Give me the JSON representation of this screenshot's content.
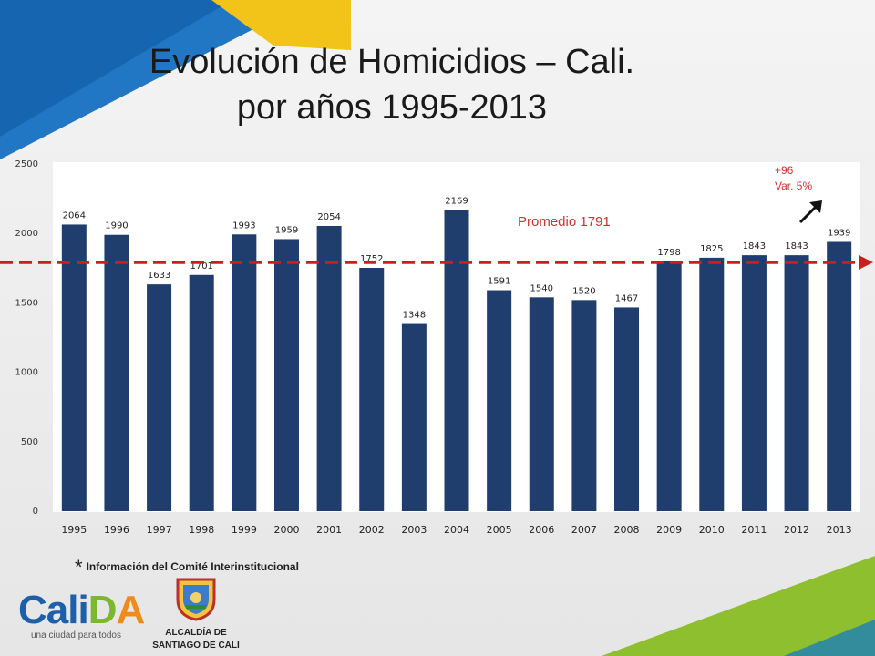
{
  "title_line1": "Evolución de Homicidios – Cali.",
  "title_line2": "por años 1995-2013",
  "footnote_star": "*",
  "footnote": "Información del Comité Interinstitucional",
  "logo": {
    "calida_parts": [
      "Cali",
      "D",
      "A"
    ],
    "calida_tagline": "una ciudad para todos",
    "alcaldia_line1": "ALCALDÍA DE",
    "alcaldia_line2": "SANTIAGO DE CALI"
  },
  "colors": {
    "bar": "#1f3e6e",
    "average_line": "#cc1e1e",
    "annotation": "#d43030",
    "blue_deco": "#1565b0",
    "yellow_deco": "#f2c318",
    "green_deco": "#8dbf2f",
    "calida_blue": "#1d5fa8",
    "calida_green": "#7cb82f",
    "calida_orange": "#f08a1c"
  },
  "chart_data": {
    "type": "bar",
    "categories": [
      "1995",
      "1996",
      "1997",
      "1998",
      "1999",
      "2000",
      "2001",
      "2002",
      "2003",
      "2004",
      "2005",
      "2006",
      "2007",
      "2008",
      "2009",
      "2010",
      "2011",
      "2012",
      "2013"
    ],
    "values": [
      2064,
      1990,
      1633,
      1701,
      1993,
      1959,
      2054,
      1752,
      1348,
      2169,
      1591,
      1540,
      1520,
      1467,
      1798,
      1825,
      1843,
      1843,
      1939
    ],
    "yticks": [
      0,
      500,
      1000,
      1500,
      2000,
      2500
    ],
    "ylim": [
      0,
      2500
    ],
    "grid": false,
    "average": {
      "value": 1791,
      "label": "Promedio 1791",
      "style": "dashed"
    },
    "annotation": {
      "line1": "+96",
      "line2": "Var. 5%",
      "arrow": "up-right"
    }
  }
}
